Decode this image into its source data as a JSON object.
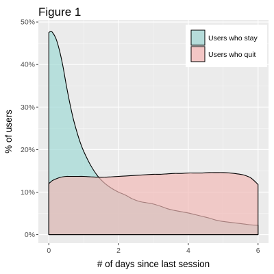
{
  "chart_data": {
    "type": "area",
    "title": "Figure 1",
    "xlabel": "# of days since last session",
    "ylabel": "% of users",
    "xlim": [
      -0.3,
      6.3
    ],
    "ylim": [
      -0.02,
      0.505
    ],
    "x_ticks": [
      0,
      2,
      4,
      6
    ],
    "y_ticks": [
      0,
      0.1,
      0.2,
      0.3,
      0.4,
      0.5
    ],
    "y_tick_labels": [
      "0%",
      "10%",
      "20%",
      "30%",
      "40%",
      "50%"
    ],
    "grid": true,
    "legend_position": "top-right",
    "series": [
      {
        "name": "Users who stay",
        "color": "#9ed9d4",
        "x": [
          0,
          0.05,
          0.1,
          0.2,
          0.3,
          0.4,
          0.5,
          0.6,
          0.7,
          0.8,
          0.9,
          1.0,
          1.2,
          1.4,
          1.6,
          1.8,
          2.0,
          2.2,
          2.4,
          2.6,
          2.8,
          3.0,
          3.2,
          3.4,
          3.6,
          3.8,
          4.0,
          4.2,
          4.4,
          4.6,
          4.8,
          5.0,
          5.2,
          5.4,
          5.6,
          5.8,
          6.0
        ],
        "values": [
          0.475,
          0.478,
          0.476,
          0.462,
          0.435,
          0.398,
          0.352,
          0.31,
          0.273,
          0.243,
          0.217,
          0.196,
          0.163,
          0.138,
          0.121,
          0.109,
          0.1,
          0.093,
          0.084,
          0.078,
          0.075,
          0.072,
          0.067,
          0.061,
          0.057,
          0.054,
          0.051,
          0.047,
          0.043,
          0.039,
          0.034,
          0.031,
          0.029,
          0.027,
          0.025,
          0.023,
          0.022
        ]
      },
      {
        "name": "Users who quit",
        "color": "#f2b8b6",
        "x": [
          0,
          0.1,
          0.2,
          0.3,
          0.4,
          0.5,
          0.6,
          0.7,
          0.8,
          1.0,
          1.2,
          1.4,
          1.6,
          1.8,
          2.0,
          2.2,
          2.4,
          2.6,
          2.8,
          3.0,
          3.2,
          3.4,
          3.6,
          3.8,
          4.0,
          4.2,
          4.4,
          4.6,
          4.8,
          5.0,
          5.2,
          5.4,
          5.6,
          5.8,
          6.0
        ],
        "values": [
          0.12,
          0.127,
          0.131,
          0.134,
          0.136,
          0.137,
          0.137,
          0.137,
          0.137,
          0.137,
          0.136,
          0.135,
          0.135,
          0.136,
          0.137,
          0.138,
          0.139,
          0.14,
          0.141,
          0.142,
          0.142,
          0.143,
          0.144,
          0.144,
          0.145,
          0.145,
          0.145,
          0.146,
          0.146,
          0.146,
          0.145,
          0.143,
          0.14,
          0.133,
          0.118
        ]
      }
    ]
  }
}
